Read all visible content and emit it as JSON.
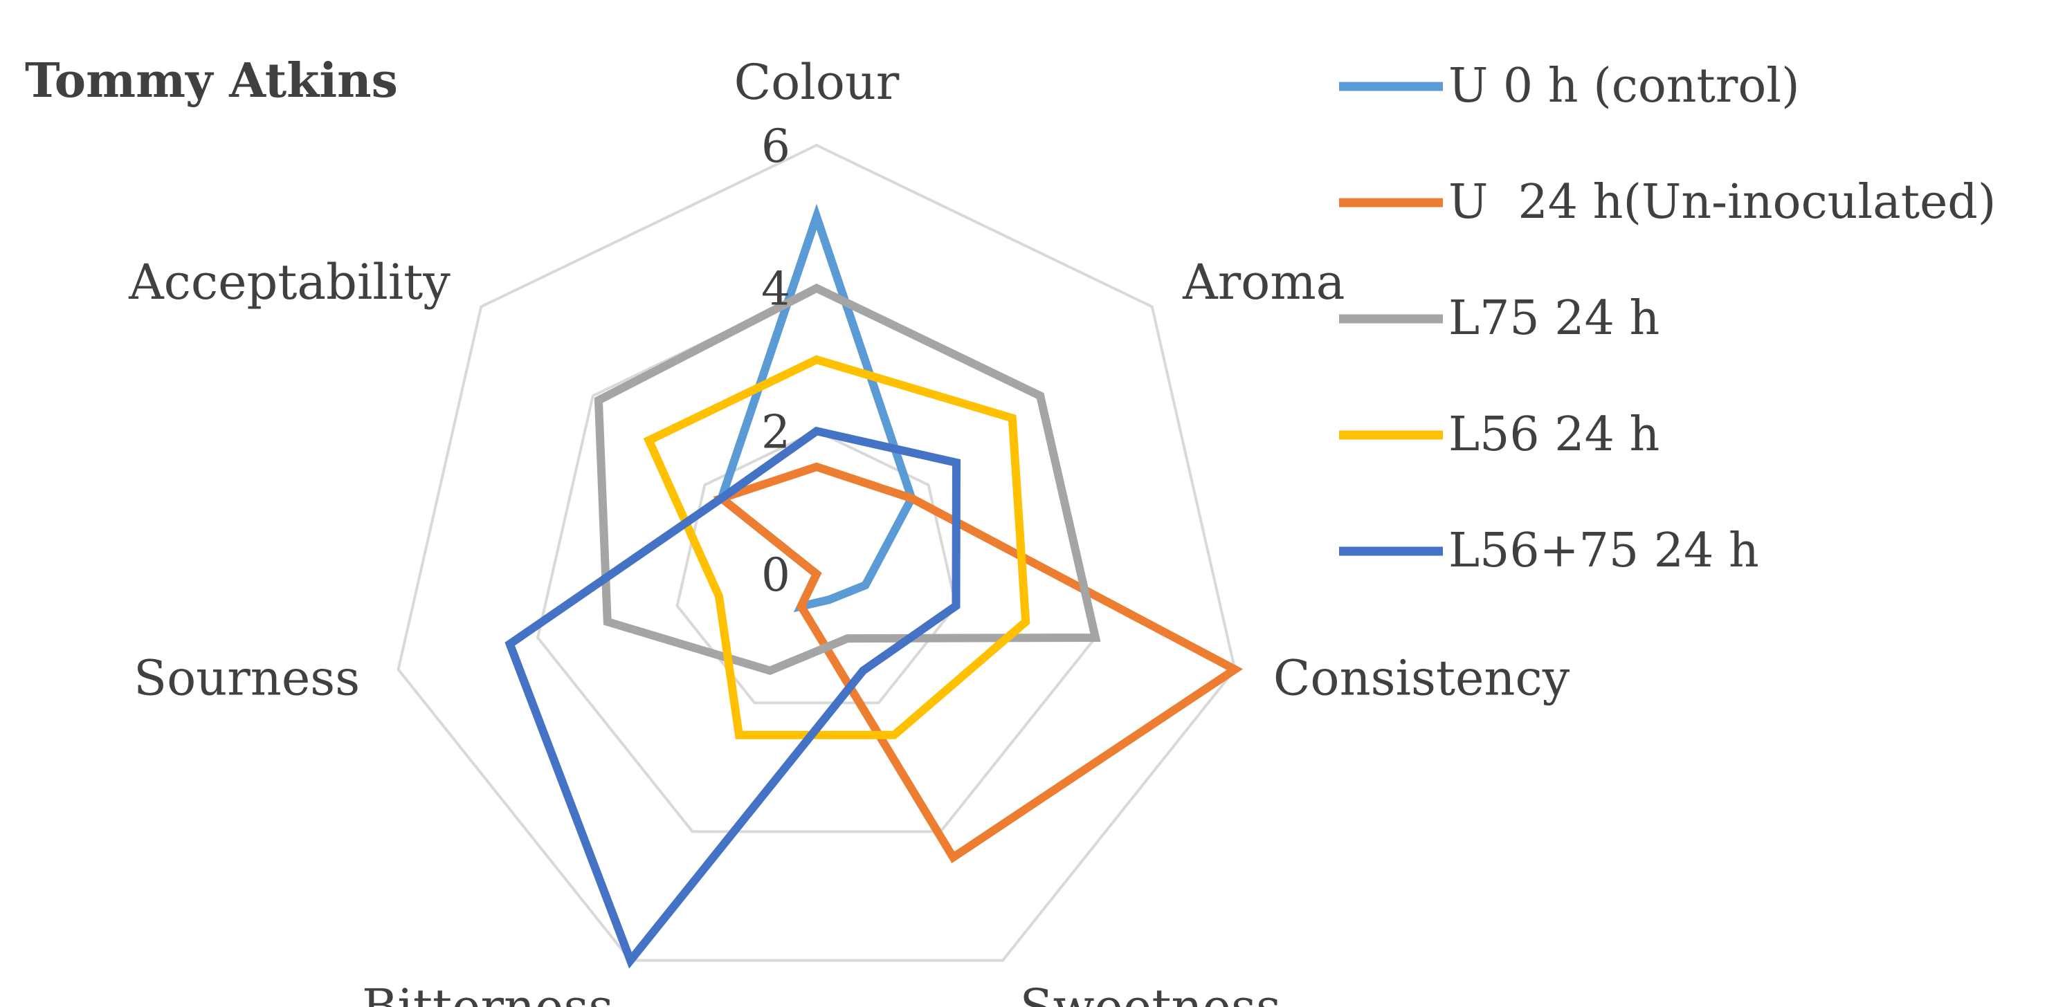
{
  "chart_data": {
    "type": "radar",
    "title": "Tommy Atkins",
    "axes": [
      "Colour",
      "Aroma",
      "Consistency",
      "Sweetness",
      "Bitterness",
      "Sourness",
      "Acceptability"
    ],
    "rlim": [
      0,
      6
    ],
    "ticks": [
      0,
      2,
      4,
      6
    ],
    "grid": true,
    "legend_position": "right",
    "series": [
      {
        "name": "U 0 h (control)",
        "color": "#5B9BD5",
        "values": [
          5.0,
          1.7,
          0.7,
          0.4,
          0.5,
          0.0,
          1.7
        ]
      },
      {
        "name": "U  24 h(Un-inoculated)",
        "color": "#ED7D31",
        "values": [
          1.5,
          1.7,
          6.0,
          4.4,
          0.5,
          0.0,
          1.7
        ]
      },
      {
        "name": "L75 24 h",
        "color": "#A5A5A5",
        "values": [
          4.0,
          4.0,
          4.0,
          1.0,
          1.5,
          3.0,
          3.9
        ]
      },
      {
        "name": "L56 24 h",
        "color": "#FFC000",
        "values": [
          3.0,
          3.5,
          3.0,
          2.5,
          2.5,
          1.4,
          3.0
        ]
      },
      {
        "name": "L56+75 24 h",
        "color": "#4472C4",
        "values": [
          2.0,
          2.5,
          2.0,
          1.5,
          6.0,
          4.4,
          1.7
        ]
      }
    ]
  }
}
